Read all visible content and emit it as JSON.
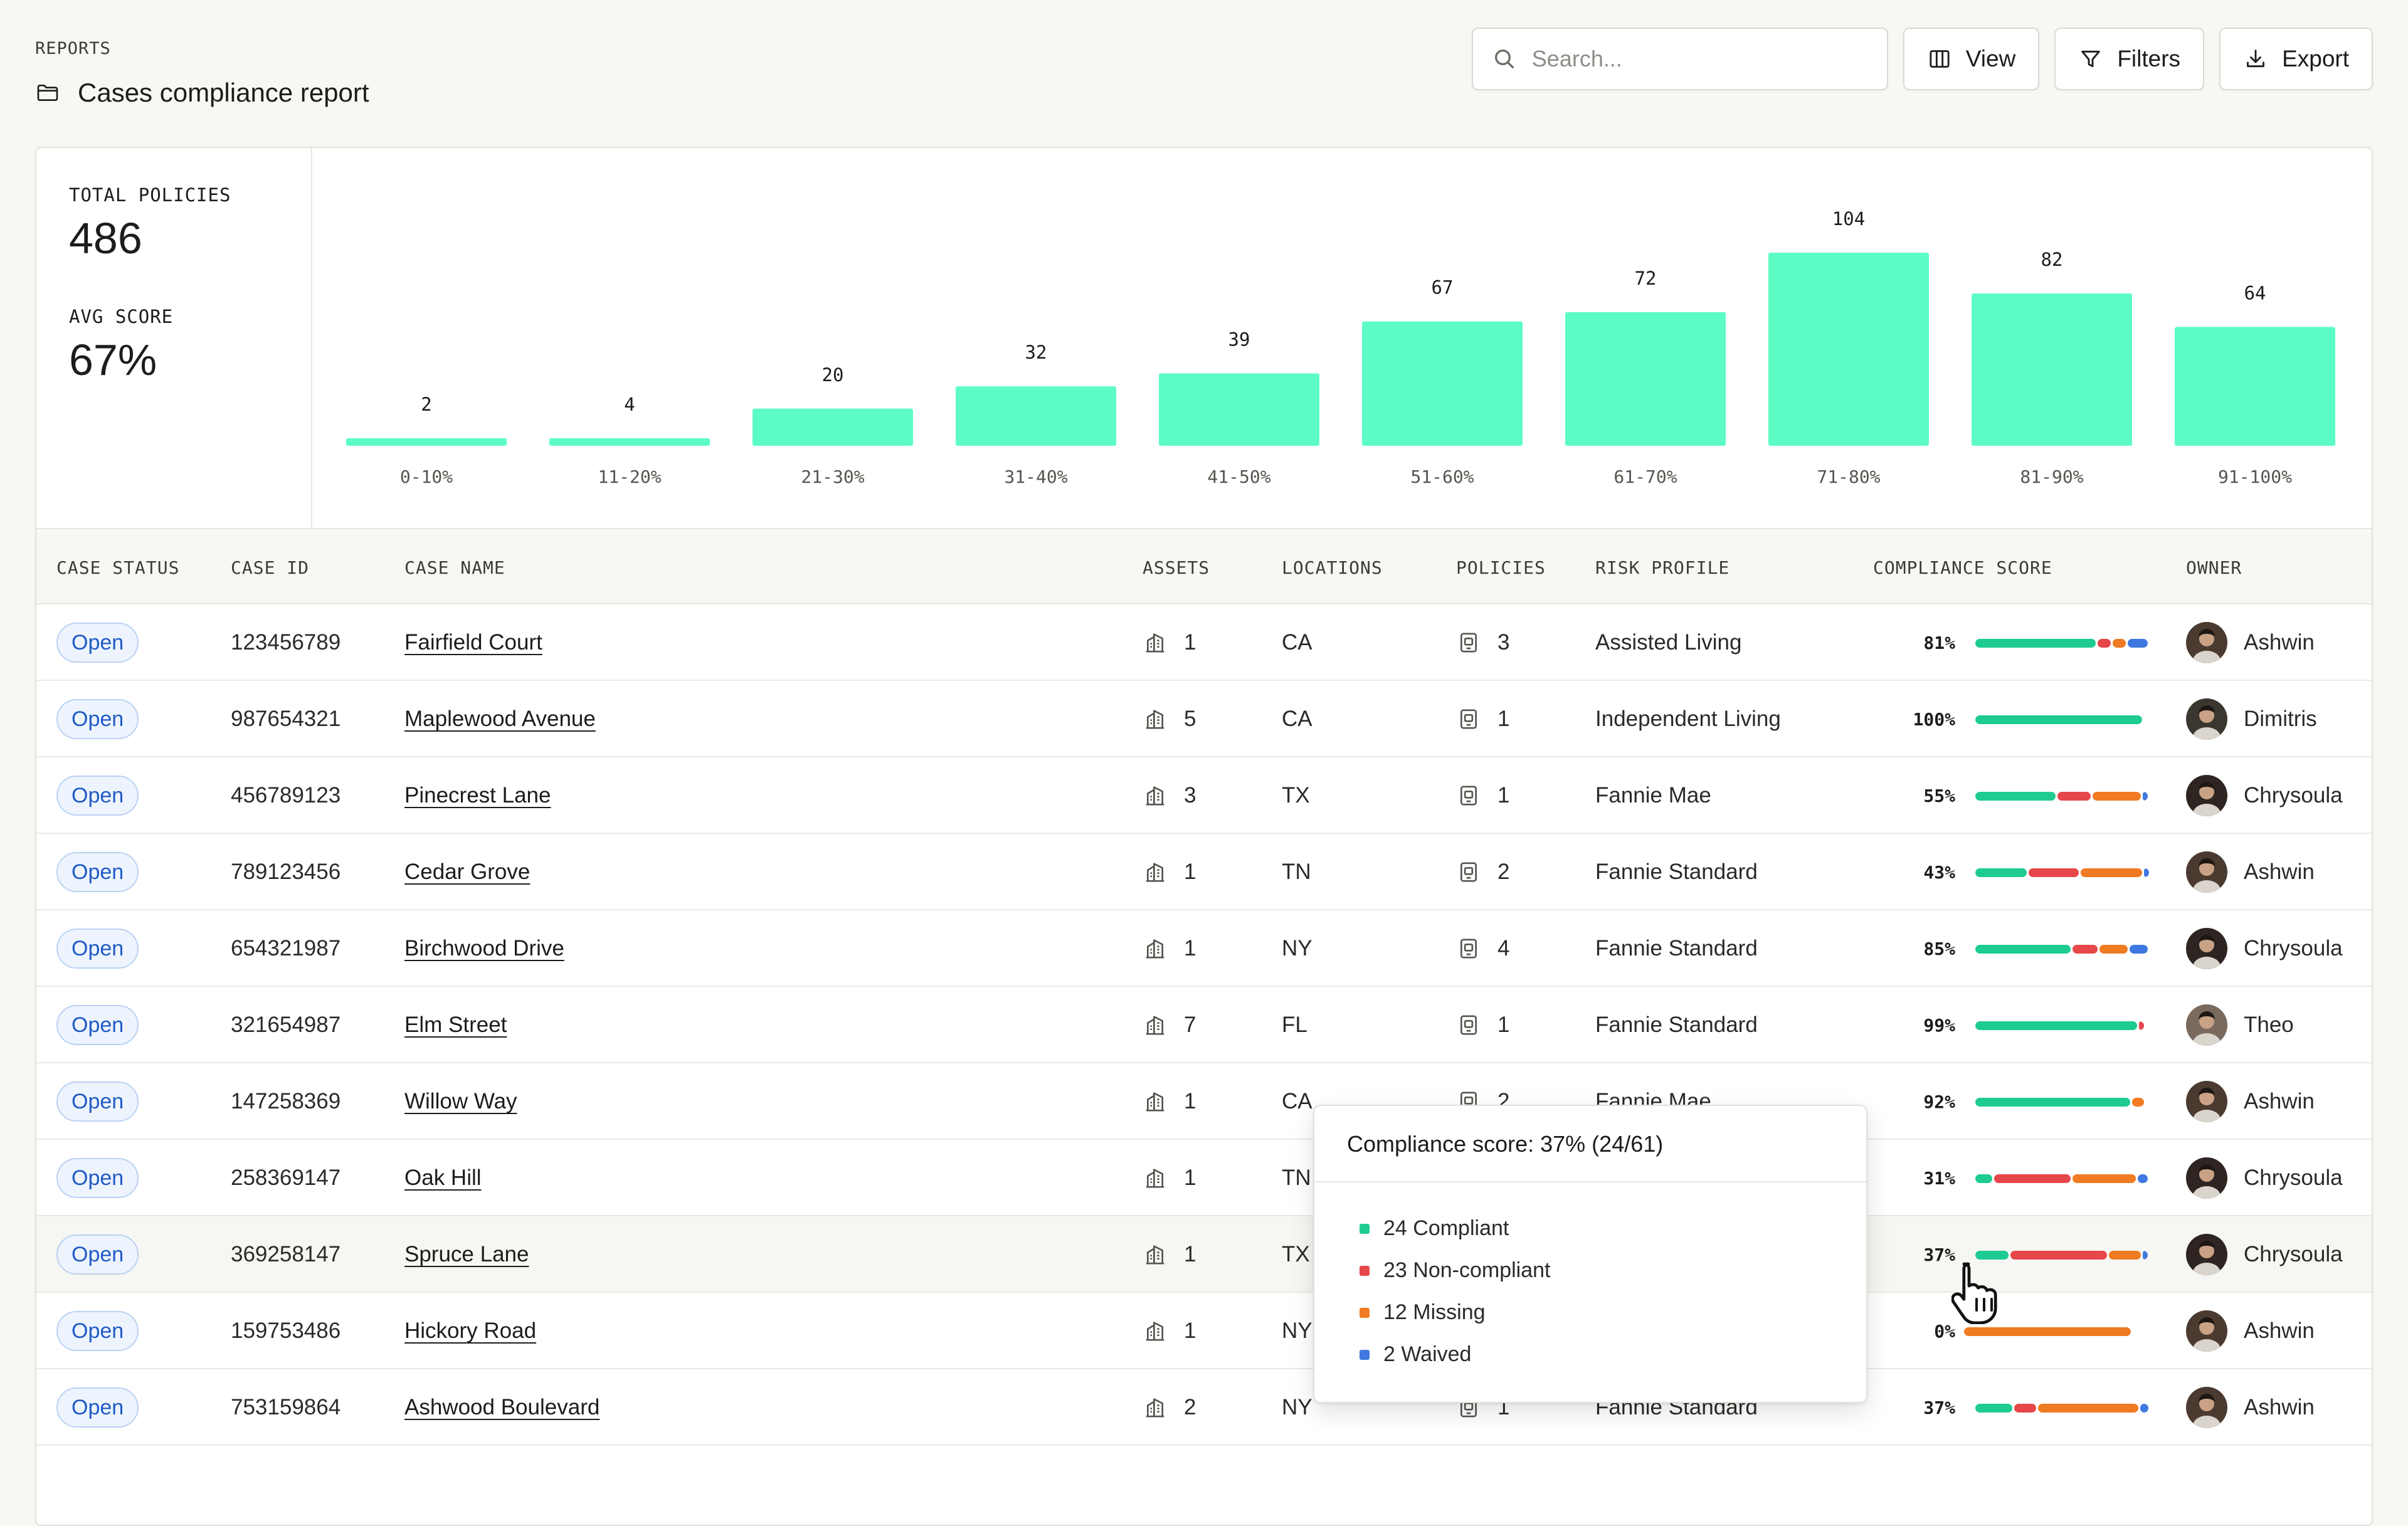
{
  "header": {
    "eyebrow": "REPORTS",
    "title": "Cases compliance report",
    "folder_icon": "folder-icon"
  },
  "toolbar": {
    "search_placeholder": "Search...",
    "view_label": "View",
    "filters_label": "Filters",
    "export_label": "Export"
  },
  "summary": {
    "total_policies_label": "TOTAL POLICIES",
    "total_policies_value": "486",
    "avg_score_label": "AVG SCORE",
    "avg_score_value": "67%"
  },
  "chart_data": {
    "type": "bar",
    "categories": [
      "0-10%",
      "11-20%",
      "21-30%",
      "31-40%",
      "41-50%",
      "51-60%",
      "61-70%",
      "71-80%",
      "81-90%",
      "91-100%"
    ],
    "values": [
      2,
      4,
      20,
      32,
      39,
      67,
      72,
      104,
      82,
      64
    ],
    "title": "",
    "xlabel": "",
    "ylabel": "",
    "ylim": [
      0,
      104
    ],
    "grid": false,
    "bar_color": "#5CFDC4"
  },
  "table": {
    "headers": {
      "status": "CASE STATUS",
      "id": "CASE ID",
      "name": "CASE NAME",
      "assets": "ASSETS",
      "locations": "LOCATIONS",
      "policies": "POLICIES",
      "risk": "RISK PROFILE",
      "score": "COMPLIANCE SCORE",
      "owner": "OWNER"
    },
    "rows": [
      {
        "status": "Open",
        "id": "123456789",
        "name": "Fairfield Court",
        "assets": "1",
        "location": "CA",
        "policies": "3",
        "risk": "Assisted Living",
        "score": "81%",
        "segments": [
          0.72,
          0.08,
          0.08,
          0.12
        ],
        "owner": "Ashwin"
      },
      {
        "status": "Open",
        "id": "987654321",
        "name": "Maplewood Avenue",
        "assets": "5",
        "location": "CA",
        "policies": "1",
        "risk": "Independent Living",
        "score": "100%",
        "segments": [
          1,
          0,
          0,
          0
        ],
        "owner": "Dimitris"
      },
      {
        "status": "Open",
        "id": "456789123",
        "name": "Pinecrest Lane",
        "assets": "3",
        "location": "TX",
        "policies": "1",
        "risk": "Fannie Mae",
        "score": "55%",
        "segments": [
          0.48,
          0.2,
          0.29,
          0.03
        ],
        "owner": "Chrysoula"
      },
      {
        "status": "Open",
        "id": "789123456",
        "name": "Cedar Grove",
        "assets": "1",
        "location": "TN",
        "policies": "2",
        "risk": "Fannie Standard",
        "score": "43%",
        "segments": [
          0.31,
          0.3,
          0.37,
          0.02
        ],
        "owner": "Ashwin"
      },
      {
        "status": "Open",
        "id": "654321987",
        "name": "Birchwood Drive",
        "assets": "1",
        "location": "NY",
        "policies": "4",
        "risk": "Fannie Standard",
        "score": "85%",
        "segments": [
          0.57,
          0.15,
          0.17,
          0.11
        ],
        "owner": "Chrysoula"
      },
      {
        "status": "Open",
        "id": "321654987",
        "name": "Elm Street",
        "assets": "7",
        "location": "FL",
        "policies": "1",
        "risk": "Fannie Standard",
        "score": "99%",
        "segments": [
          0.97,
          0.03,
          0,
          0
        ],
        "owner": "Theo"
      },
      {
        "status": "Open",
        "id": "147258369",
        "name": "Willow Way",
        "assets": "1",
        "location": "CA",
        "policies": "2",
        "risk": "Fannie Mae",
        "score": "92%",
        "segments": [
          0.93,
          0,
          0.07,
          0
        ],
        "owner": "Ashwin"
      },
      {
        "status": "Open",
        "id": "258369147",
        "name": "Oak Hill",
        "assets": "1",
        "location": "TN",
        "policies": "",
        "risk": "",
        "score": "31%",
        "segments": [
          0.1,
          0.46,
          0.38,
          0.06
        ],
        "owner": "Chrysoula"
      },
      {
        "status": "Open",
        "id": "369258147",
        "name": "Spruce Lane",
        "assets": "1",
        "location": "TX",
        "policies": "",
        "risk": "",
        "score": "37%",
        "segments": [
          0.2,
          0.58,
          0.19,
          0.03
        ],
        "owner": "Chrysoula"
      },
      {
        "status": "Open",
        "id": "159753486",
        "name": "Hickory Road",
        "assets": "1",
        "location": "NY",
        "policies": "",
        "risk": "",
        "score": "0%",
        "segments": [
          0,
          0,
          1,
          0
        ],
        "owner": "Ashwin"
      },
      {
        "status": "Open",
        "id": "753159864",
        "name": "Ashwood Boulevard",
        "assets": "2",
        "location": "NY",
        "policies": "1",
        "risk": "Fannie Standard",
        "score": "37%",
        "segments": [
          0.22,
          0.13,
          0.6,
          0.05
        ],
        "owner": "Ashwin"
      }
    ]
  },
  "tooltip": {
    "title": "Compliance score: 37% (24/61)",
    "items": [
      "24 Compliant",
      "23 Non-compliant",
      "12 Missing",
      "2 Waived"
    ]
  },
  "colors": {
    "compliant": "#1ECB92",
    "non_compliant": "#E5474B",
    "missing": "#F07B22",
    "waived": "#3F78E0",
    "badge_text": "#1F5BC4",
    "chart_bar": "#5CFDC4"
  }
}
